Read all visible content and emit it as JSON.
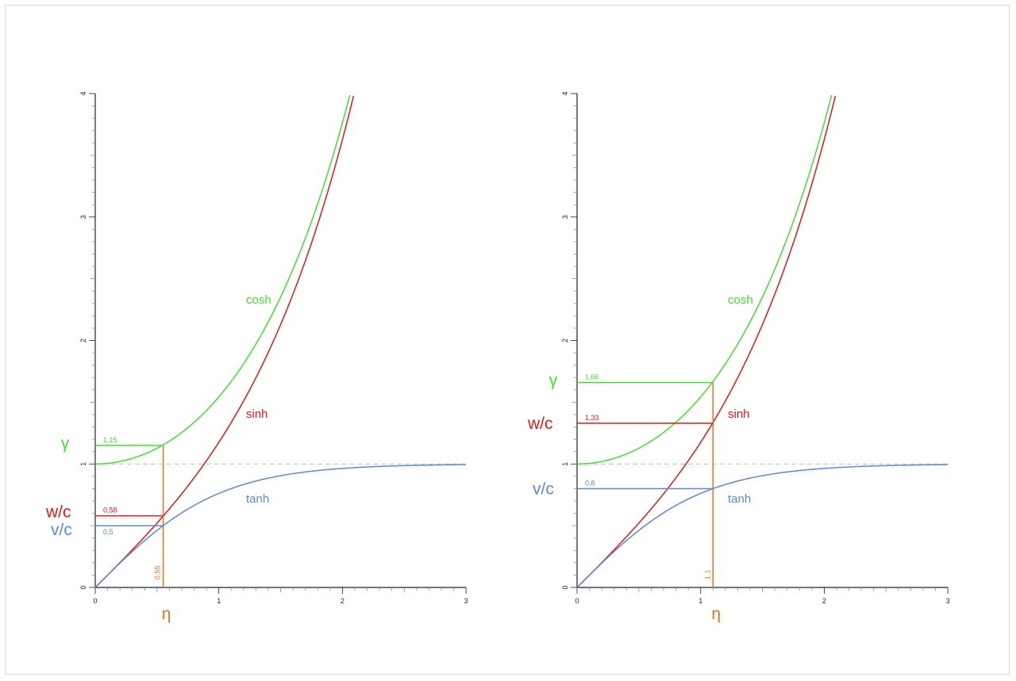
{
  "colors": {
    "cosh": "#44dd33",
    "sinh": "#e01818",
    "tanh": "#5b87de",
    "eta": "#f07020",
    "axis": "#222222",
    "reference_line": "#bbbbbb"
  },
  "chart_data": [
    {
      "type": "line",
      "title": "",
      "xlabel": "η",
      "ylabel": "",
      "xlim": [
        0,
        3
      ],
      "ylim": [
        0,
        4
      ],
      "x_ticks": [
        "0",
        "1",
        "2",
        "3"
      ],
      "y_ticks": [
        "0",
        "1",
        "2",
        "3",
        "4"
      ],
      "grid": false,
      "reference_line_y": 1,
      "series": [
        {
          "name": "cosh",
          "function": "cosh",
          "color_key": "cosh"
        },
        {
          "name": "sinh",
          "function": "sinh",
          "color_key": "sinh"
        },
        {
          "name": "tanh",
          "function": "tanh",
          "color_key": "tanh"
        }
      ],
      "marker": {
        "eta": 0.55,
        "eta_label": "0,55",
        "values": [
          {
            "symbol": "γ",
            "series": "cosh",
            "y": 1.15,
            "label": "1,15"
          },
          {
            "symbol": "w/c",
            "series": "sinh",
            "y": 0.58,
            "label": "0,58"
          },
          {
            "symbol": "v/c",
            "series": "tanh",
            "y": 0.5,
            "label": "0,5"
          }
        ]
      }
    },
    {
      "type": "line",
      "title": "",
      "xlabel": "η",
      "ylabel": "",
      "xlim": [
        0,
        3
      ],
      "ylim": [
        0,
        4
      ],
      "x_ticks": [
        "0",
        "1",
        "2",
        "3"
      ],
      "y_ticks": [
        "0",
        "1",
        "2",
        "3",
        "4"
      ],
      "grid": false,
      "reference_line_y": 1,
      "series": [
        {
          "name": "cosh",
          "function": "cosh",
          "color_key": "cosh"
        },
        {
          "name": "sinh",
          "function": "sinh",
          "color_key": "sinh"
        },
        {
          "name": "tanh",
          "function": "tanh",
          "color_key": "tanh"
        }
      ],
      "marker": {
        "eta": 1.1,
        "eta_label": "1,1",
        "values": [
          {
            "symbol": "γ",
            "series": "cosh",
            "y": 1.66,
            "label": "1,66"
          },
          {
            "symbol": "w/c",
            "series": "sinh",
            "y": 1.33,
            "label": "1,33"
          },
          {
            "symbol": "v/c",
            "series": "tanh",
            "y": 0.8,
            "label": "0,8"
          }
        ]
      }
    }
  ]
}
